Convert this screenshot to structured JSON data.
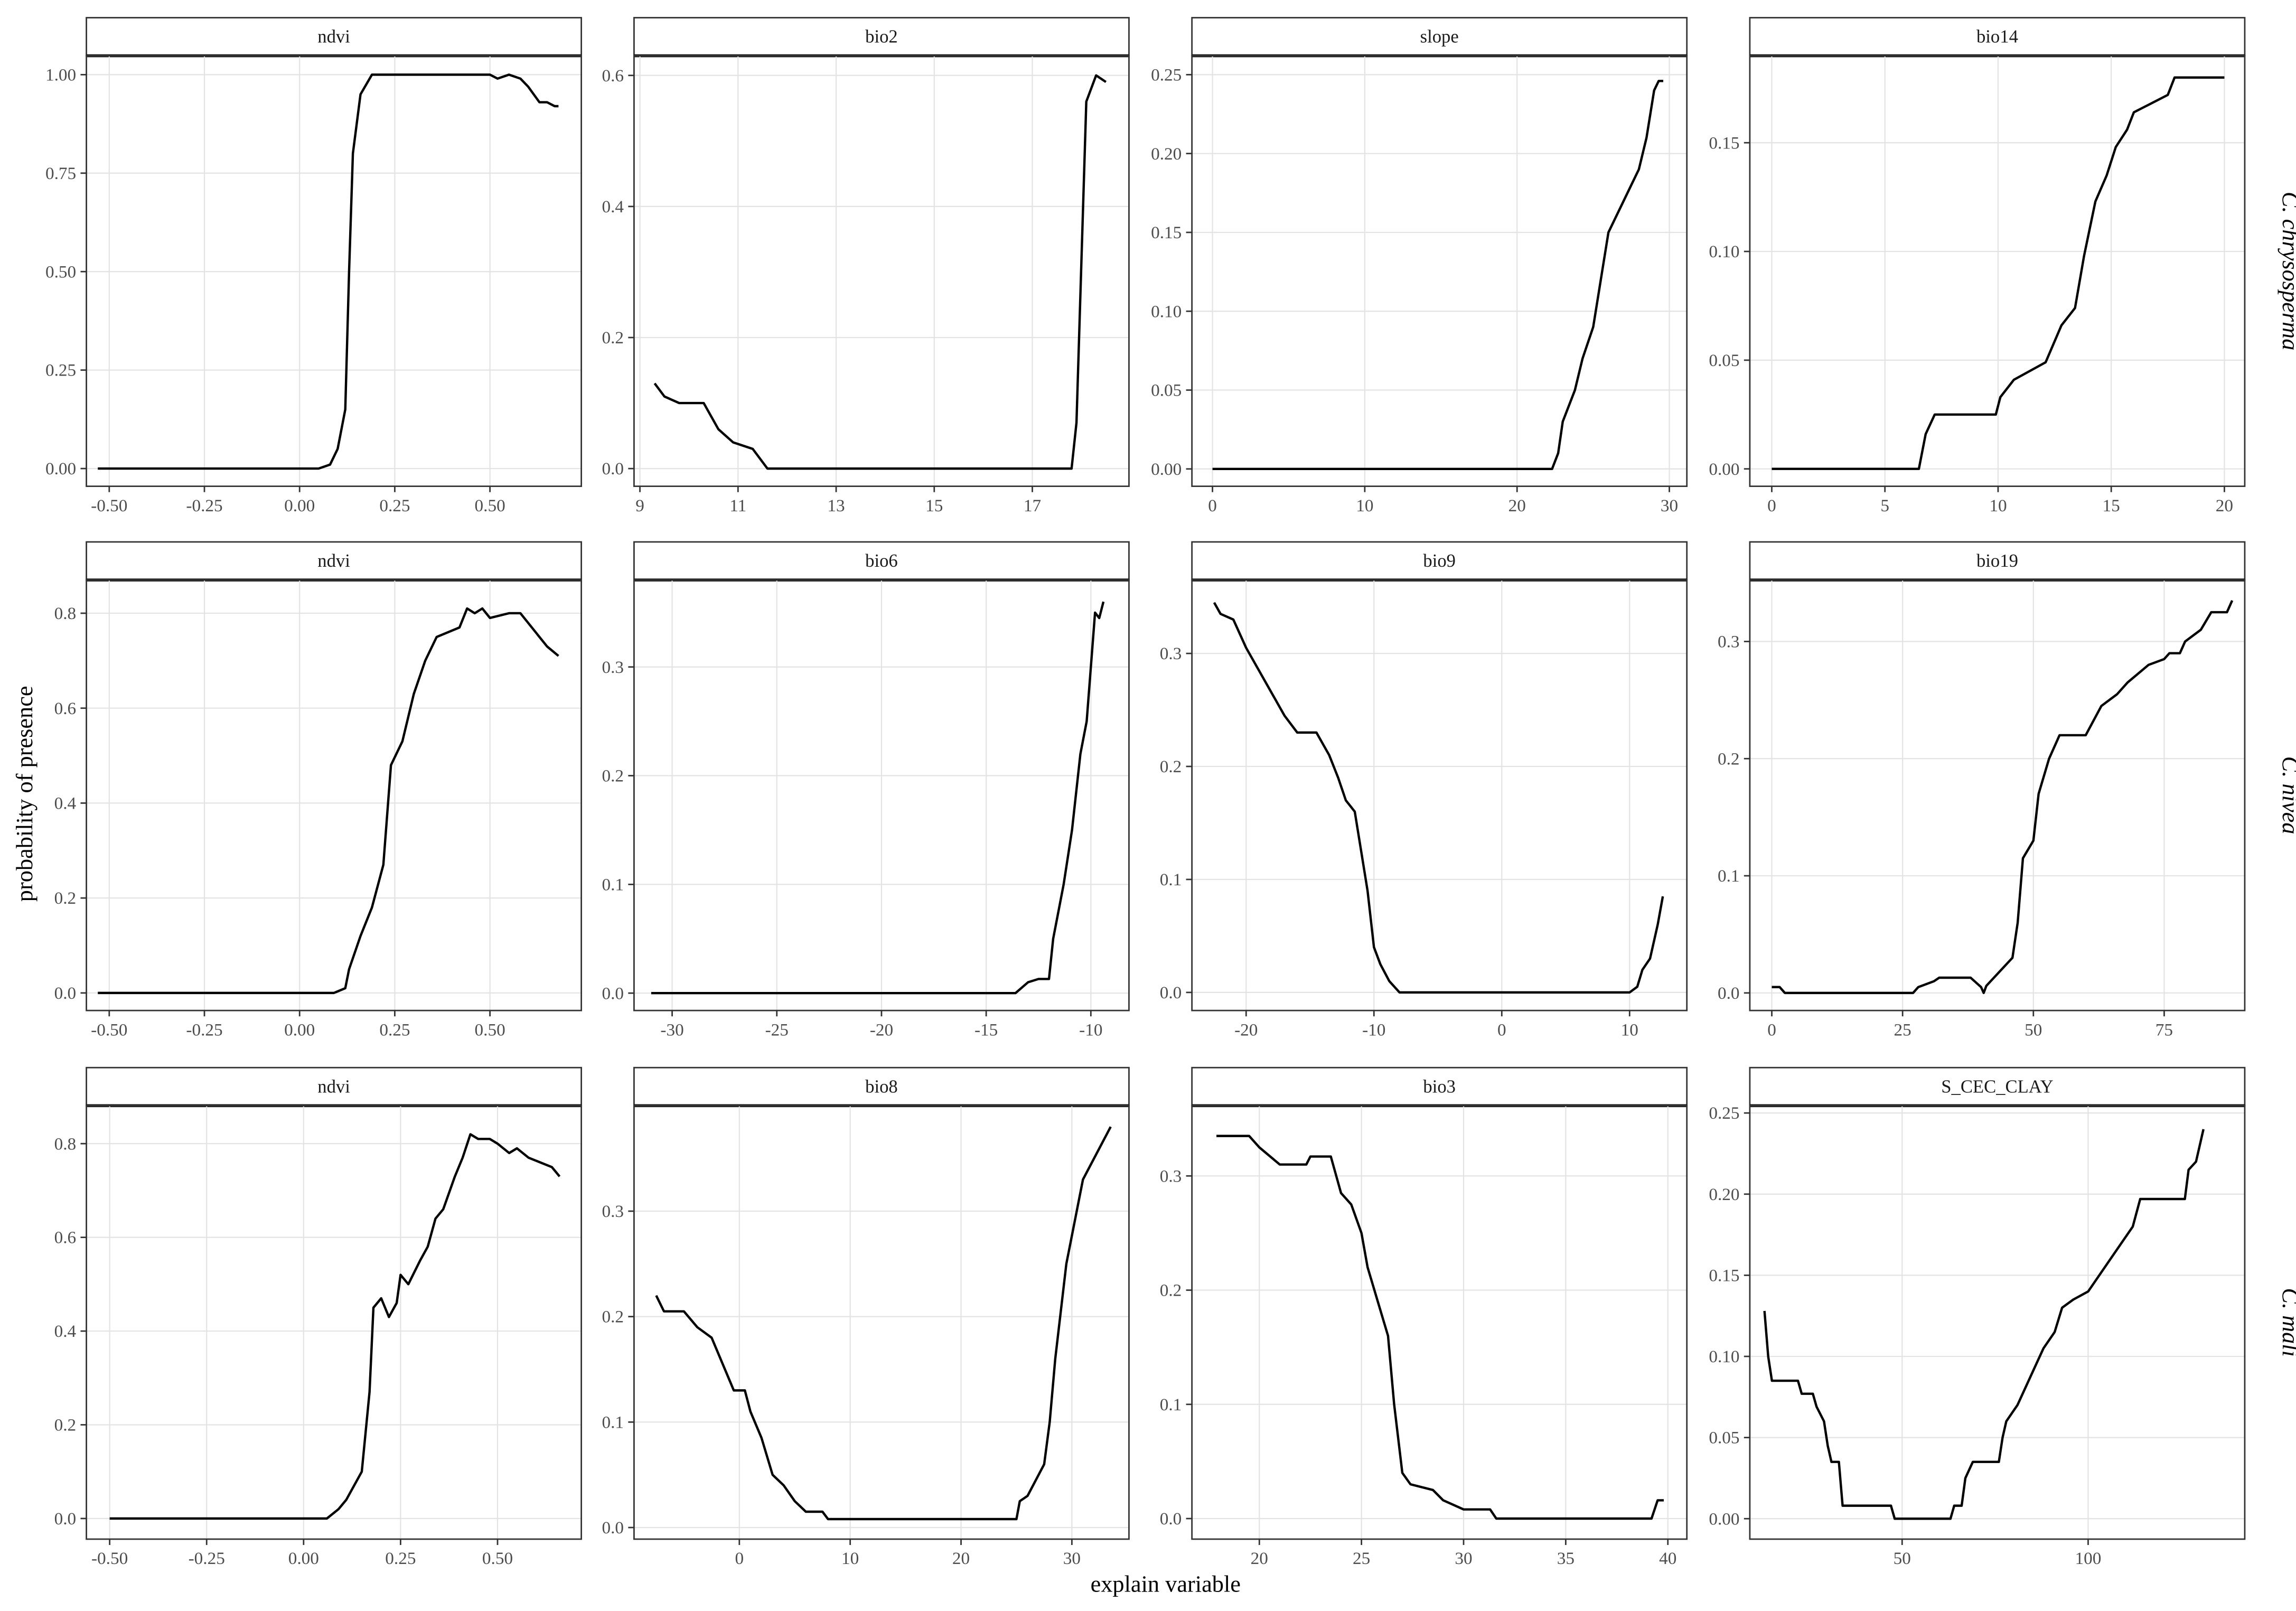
{
  "ylabel": "probability of presence",
  "xlabel": "explain variable",
  "row_labels": [
    "C. chrysosperma",
    "C. nivea",
    "C. mali"
  ],
  "chart_data": [
    {
      "type": "line",
      "title": "ndvi",
      "color": "#000000",
      "grid": true,
      "x": [
        -0.53,
        0.05,
        0.08,
        0.1,
        0.12,
        0.13,
        0.14,
        0.16,
        0.19,
        0.5,
        0.52,
        0.55,
        0.58,
        0.6,
        0.63,
        0.65,
        0.67,
        0.68
      ],
      "values": [
        0,
        0,
        0.01,
        0.05,
        0.15,
        0.5,
        0.8,
        0.95,
        1,
        1,
        0.99,
        1,
        0.99,
        0.97,
        0.93,
        0.93,
        0.92,
        0.92
      ],
      "xlim": [
        -0.56,
        0.74
      ],
      "ylim": [
        -0.045,
        1.048
      ],
      "xticks": [
        {
          "value": -0.5,
          "label": "-0.50"
        },
        {
          "value": -0.25,
          "label": "-0.25"
        },
        {
          "value": 0,
          "label": "0.00"
        },
        {
          "value": 0.25,
          "label": "0.25"
        },
        {
          "value": 0.5,
          "label": "0.50"
        }
      ],
      "yticks": [
        {
          "value": 0,
          "label": "0.00"
        },
        {
          "value": 0.25,
          "label": "0.25"
        },
        {
          "value": 0.5,
          "label": "0.50"
        },
        {
          "value": 0.75,
          "label": "0.75"
        },
        {
          "value": 1,
          "label": "1.00"
        }
      ]
    },
    {
      "type": "line",
      "title": "bio2",
      "color": "#000000",
      "grid": true,
      "x": [
        9.3,
        9.5,
        9.8,
        10.3,
        10.6,
        10.9,
        11.3,
        11.6,
        17.8,
        17.9,
        18.1,
        18.3,
        18.5
      ],
      "values": [
        0.13,
        0.11,
        0.1,
        0.1,
        0.06,
        0.04,
        0.03,
        0,
        0,
        0.07,
        0.56,
        0.6,
        0.59
      ],
      "xlim": [
        8.88,
        18.97
      ],
      "ylim": [
        -0.027,
        0.63
      ],
      "xticks": [
        9,
        11,
        13,
        15,
        17
      ],
      "yticks": [
        {
          "value": 0,
          "label": "0.0"
        },
        0.2,
        0.4,
        0.6
      ]
    },
    {
      "type": "line",
      "title": "slope",
      "color": "#000000",
      "grid": true,
      "x": [
        0,
        22.3,
        22.7,
        23,
        23.8,
        24.3,
        25,
        25.5,
        26,
        26.5,
        27,
        27.5,
        28,
        28.5,
        29,
        29.3,
        29.6
      ],
      "values": [
        0,
        0,
        0.01,
        0.03,
        0.05,
        0.07,
        0.09,
        0.12,
        0.15,
        0.16,
        0.17,
        0.18,
        0.19,
        0.21,
        0.24,
        0.246,
        0.246
      ],
      "xlim": [
        -1.35,
        31.15
      ],
      "ylim": [
        -0.011,
        0.262
      ],
      "xticks": [
        0,
        10,
        20,
        30
      ],
      "yticks": [
        {
          "value": 0,
          "label": "0.00"
        },
        0.05,
        {
          "value": 0.1,
          "label": "0.10"
        },
        0.15,
        {
          "value": 0.2,
          "label": "0.20"
        },
        0.25
      ]
    },
    {
      "type": "line",
      "title": "bio14",
      "color": "#000000",
      "grid": true,
      "x": [
        0,
        6.5,
        6.8,
        7.2,
        9.9,
        10.1,
        10.7,
        12.1,
        12.8,
        13.4,
        13.8,
        14.3,
        14.8,
        15.2,
        15.7,
        16,
        17.5,
        17.8,
        20
      ],
      "values": [
        0,
        0,
        0.016,
        0.025,
        0.025,
        0.033,
        0.041,
        0.049,
        0.066,
        0.074,
        0.098,
        0.123,
        0.135,
        0.148,
        0.156,
        0.164,
        0.172,
        0.18,
        0.18
      ],
      "xlim": [
        -0.97,
        20.9
      ],
      "ylim": [
        -0.008,
        0.19
      ],
      "xticks": [
        0,
        5,
        10,
        15,
        20
      ],
      "yticks": [
        {
          "value": 0,
          "label": "0.00"
        },
        0.05,
        {
          "value": 0.1,
          "label": "0.10"
        },
        0.15
      ]
    },
    {
      "type": "line",
      "title": "ndvi",
      "color": "#000000",
      "grid": true,
      "x": [
        -0.53,
        0.09,
        0.12,
        0.13,
        0.16,
        0.19,
        0.22,
        0.24,
        0.27,
        0.3,
        0.33,
        0.36,
        0.39,
        0.42,
        0.44,
        0.46,
        0.48,
        0.5,
        0.55,
        0.58,
        0.62,
        0.65,
        0.68
      ],
      "values": [
        0,
        0,
        0.01,
        0.05,
        0.12,
        0.18,
        0.27,
        0.48,
        0.53,
        0.63,
        0.7,
        0.75,
        0.76,
        0.77,
        0.81,
        0.8,
        0.81,
        0.79,
        0.8,
        0.8,
        0.76,
        0.73,
        0.71
      ],
      "xlim": [
        -0.56,
        0.74
      ],
      "ylim": [
        -0.037,
        0.87
      ],
      "xticks": [
        {
          "value": -0.5,
          "label": "-0.50"
        },
        {
          "value": -0.25,
          "label": "-0.25"
        },
        {
          "value": 0,
          "label": "0.00"
        },
        {
          "value": 0.25,
          "label": "0.25"
        },
        {
          "value": 0.5,
          "label": "0.50"
        }
      ],
      "yticks": [
        {
          "value": 0,
          "label": "0.0"
        },
        0.2,
        0.4,
        0.6,
        0.8
      ]
    },
    {
      "type": "line",
      "title": "bio6",
      "color": "#000000",
      "grid": true,
      "x": [
        -31,
        -13.6,
        -13,
        -12.5,
        -12,
        -11.8,
        -11.3,
        -10.9,
        -10.5,
        -10.2,
        -9.8,
        -9.6,
        -9.4
      ],
      "values": [
        0,
        0,
        0.01,
        0.013,
        0.013,
        0.05,
        0.1,
        0.15,
        0.22,
        0.25,
        0.35,
        0.345,
        0.36
      ],
      "xlim": [
        -31.82,
        -8.18
      ],
      "ylim": [
        -0.016,
        0.38
      ],
      "xticks": [
        -30,
        -25,
        -20,
        -15,
        -10
      ],
      "yticks": [
        {
          "value": 0,
          "label": "0.0"
        },
        0.1,
        0.2,
        0.3
      ]
    },
    {
      "type": "line",
      "title": "bio9",
      "color": "#000000",
      "grid": true,
      "x": [
        -22.5,
        -22,
        -21,
        -20,
        -19,
        -18,
        -17,
        -16,
        -14.5,
        -13.5,
        -12.8,
        -12.2,
        -11.5,
        -11,
        -10.5,
        -10,
        -9.5,
        -8.8,
        -8,
        10,
        10.6,
        11,
        11.6,
        12.2,
        12.6
      ],
      "values": [
        0.345,
        0.335,
        0.33,
        0.305,
        0.285,
        0.265,
        0.245,
        0.23,
        0.23,
        0.21,
        0.19,
        0.17,
        0.16,
        0.125,
        0.09,
        0.04,
        0.025,
        0.01,
        0,
        0,
        0.005,
        0.02,
        0.03,
        0.06,
        0.085
      ],
      "xlim": [
        -24.24,
        14.48
      ],
      "ylim": [
        -0.016,
        0.365
      ],
      "xticks": [
        -20,
        -10,
        0,
        10
      ],
      "yticks": [
        {
          "value": 0,
          "label": "0.0"
        },
        0.1,
        0.2,
        0.3
      ]
    },
    {
      "type": "line",
      "title": "bio19",
      "color": "#000000",
      "grid": true,
      "x": [
        0,
        1.5,
        2.5,
        27,
        28,
        31,
        32,
        38,
        40,
        40.5,
        41,
        46,
        47,
        48,
        50,
        51,
        53,
        55,
        60,
        63,
        66,
        68,
        72,
        75,
        76,
        78,
        79,
        82,
        84,
        87,
        88
      ],
      "values": [
        0.005,
        0.005,
        0,
        0,
        0.005,
        0.01,
        0.013,
        0.013,
        0.005,
        0,
        0.006,
        0.03,
        0.06,
        0.115,
        0.13,
        0.17,
        0.2,
        0.22,
        0.22,
        0.245,
        0.255,
        0.265,
        0.28,
        0.285,
        0.29,
        0.29,
        0.3,
        0.31,
        0.325,
        0.325,
        0.335
      ],
      "xlim": [
        -4.2,
        90.4
      ],
      "ylim": [
        -0.015,
        0.3525
      ],
      "xticks": [
        0,
        25,
        50,
        75
      ],
      "yticks": [
        {
          "value": 0,
          "label": "0.0"
        },
        0.1,
        0.2,
        0.3
      ]
    },
    {
      "type": "line",
      "title": "ndvi",
      "color": "#000000",
      "grid": true,
      "x": [
        -0.5,
        0.06,
        0.09,
        0.11,
        0.15,
        0.17,
        0.18,
        0.2,
        0.22,
        0.24,
        0.25,
        0.27,
        0.3,
        0.32,
        0.34,
        0.36,
        0.39,
        0.41,
        0.43,
        0.45,
        0.48,
        0.5,
        0.53,
        0.55,
        0.58,
        0.61,
        0.64,
        0.66
      ],
      "values": [
        0,
        0,
        0.02,
        0.04,
        0.1,
        0.27,
        0.45,
        0.47,
        0.43,
        0.46,
        0.52,
        0.5,
        0.55,
        0.58,
        0.64,
        0.66,
        0.73,
        0.77,
        0.82,
        0.81,
        0.81,
        0.8,
        0.78,
        0.79,
        0.77,
        0.76,
        0.75,
        0.73
      ],
      "xlim": [
        -0.56,
        0.716
      ],
      "ylim": [
        -0.044,
        0.881
      ],
      "xticks": [
        {
          "value": -0.5,
          "label": "-0.50"
        },
        {
          "value": -0.25,
          "label": "-0.25"
        },
        {
          "value": 0,
          "label": "0.00"
        },
        {
          "value": 0.25,
          "label": "0.25"
        },
        {
          "value": 0.5,
          "label": "0.50"
        }
      ],
      "yticks": [
        {
          "value": 0,
          "label": "0.0"
        },
        0.2,
        0.4,
        0.6,
        0.8
      ]
    },
    {
      "type": "line",
      "title": "bio8",
      "color": "#000000",
      "grid": true,
      "x": [
        -7.5,
        -6.8,
        -5,
        -3.8,
        -2.5,
        -1.5,
        -0.5,
        0.5,
        1,
        2,
        3,
        4,
        5,
        6,
        7.5,
        8,
        25,
        25.3,
        26,
        27.5,
        28,
        28.5,
        29.5,
        31,
        33,
        33.5
      ],
      "values": [
        0.22,
        0.205,
        0.205,
        0.19,
        0.18,
        0.155,
        0.13,
        0.13,
        0.11,
        0.085,
        0.05,
        0.04,
        0.025,
        0.015,
        0.015,
        0.008,
        0.008,
        0.025,
        0.03,
        0.06,
        0.1,
        0.16,
        0.25,
        0.33,
        0.37,
        0.38
      ],
      "xlim": [
        -9.5,
        35.15
      ],
      "ylim": [
        -0.011,
        0.4
      ],
      "xticks": [
        0,
        10,
        20,
        30
      ],
      "yticks": [
        {
          "value": 0,
          "label": "0.0"
        },
        0.1,
        0.2,
        0.3
      ]
    },
    {
      "type": "line",
      "title": "bio3",
      "color": "#000000",
      "grid": true,
      "x": [
        17.9,
        19.5,
        20,
        21,
        22.3,
        22.5,
        23.5,
        24,
        24.5,
        25,
        25.3,
        25.8,
        26.3,
        26.6,
        27,
        27.4,
        28.5,
        29,
        30,
        31.3,
        31.6,
        39.2,
        39.5,
        39.8
      ],
      "values": [
        0.335,
        0.335,
        0.325,
        0.31,
        0.31,
        0.317,
        0.317,
        0.285,
        0.275,
        0.25,
        0.22,
        0.19,
        0.16,
        0.1,
        0.04,
        0.03,
        0.025,
        0.016,
        0.008,
        0.008,
        0,
        0,
        0.016,
        0.016
      ],
      "xlim": [
        16.7,
        40.93
      ],
      "ylim": [
        -0.018,
        0.3615
      ],
      "xticks": [
        20,
        25,
        30,
        35,
        40
      ],
      "yticks": [
        {
          "value": 0,
          "label": "0.0"
        },
        0.1,
        0.2,
        0.3
      ]
    },
    {
      "type": "line",
      "title": "S_CEC_CLAY",
      "color": "#000000",
      "grid": true,
      "x": [
        13,
        14,
        15,
        22,
        23,
        26,
        27,
        29,
        30,
        31,
        33,
        34,
        47,
        48,
        63,
        64,
        66,
        67,
        69,
        76,
        77,
        78,
        81,
        83,
        86,
        88,
        91,
        93,
        96,
        100,
        103,
        106,
        109,
        112,
        114,
        126,
        127,
        129,
        131
      ],
      "values": [
        0.128,
        0.1,
        0.085,
        0.085,
        0.077,
        0.077,
        0.069,
        0.06,
        0.045,
        0.035,
        0.035,
        0.008,
        0.008,
        0,
        0,
        0.008,
        0.008,
        0.025,
        0.035,
        0.035,
        0.05,
        0.06,
        0.07,
        0.08,
        0.095,
        0.105,
        0.115,
        0.13,
        0.135,
        0.14,
        0.15,
        0.16,
        0.17,
        0.18,
        0.197,
        0.197,
        0.215,
        0.22,
        0.24
      ],
      "xlim": [
        9.06,
        142.1
      ],
      "ylim": [
        -0.0126,
        0.2545
      ],
      "xticks": [
        50,
        100
      ],
      "yticks": [
        {
          "value": 0,
          "label": "0.00"
        },
        0.05,
        {
          "value": 0.1,
          "label": "0.10"
        },
        0.15,
        {
          "value": 0.2,
          "label": "0.20"
        },
        0.25
      ]
    }
  ]
}
